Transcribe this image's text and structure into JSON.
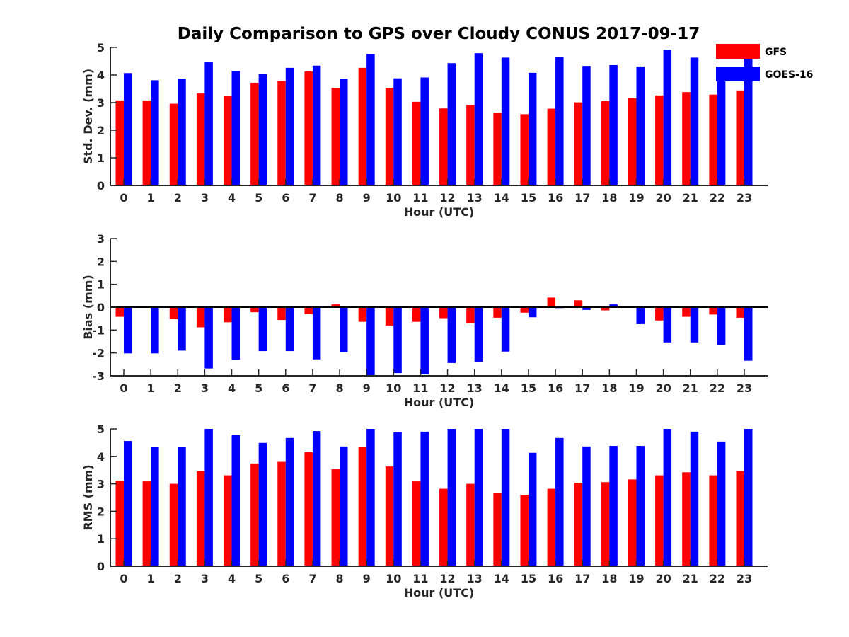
{
  "colors": {
    "gfs": "#ff0000",
    "goes": "#0000ff",
    "axis": "#262626"
  },
  "chart_data": {
    "type": "bar",
    "title": "Daily Comparison to GPS over Cloudy CONUS 2017-09-17",
    "legend": {
      "placement": "top-right",
      "entries": [
        "GFS",
        "GOES-16"
      ]
    },
    "categories": [
      "0",
      "1",
      "2",
      "3",
      "4",
      "5",
      "6",
      "7",
      "8",
      "9",
      "10",
      "11",
      "12",
      "13",
      "14",
      "15",
      "16",
      "17",
      "18",
      "19",
      "20",
      "21",
      "22",
      "23"
    ],
    "panels": [
      {
        "ylabel": "Std. Dev. (mm)",
        "xlabel": "Hour (UTC)",
        "ylim": [
          0,
          5
        ],
        "yticks": [
          0,
          1,
          2,
          3,
          4,
          5
        ],
        "grid": false,
        "series": [
          {
            "name": "GFS",
            "values": [
              3.08,
              3.08,
              2.96,
              3.33,
              3.23,
              3.72,
              3.78,
              4.13,
              3.53,
              4.26,
              3.53,
              3.03,
              2.79,
              2.91,
              2.63,
              2.58,
              2.78,
              3.01,
              3.06,
              3.16,
              3.26,
              3.38,
              3.29,
              3.44
            ]
          },
          {
            "name": "GOES-16",
            "values": [
              4.07,
              3.81,
              3.86,
              4.46,
              4.15,
              4.03,
              4.26,
              4.34,
              3.86,
              4.76,
              3.88,
              3.91,
              4.43,
              4.79,
              4.63,
              4.08,
              4.66,
              4.33,
              4.36,
              4.31,
              4.92,
              4.63,
              4.21,
              4.88
            ]
          }
        ]
      },
      {
        "ylabel": "Bias (mm)",
        "xlabel": "Hour (UTC)",
        "ylim": [
          -3,
          3
        ],
        "yticks": [
          -3,
          -2,
          -1,
          0,
          1,
          2,
          3
        ],
        "grid": false,
        "series": [
          {
            "name": "GFS",
            "values": [
              -0.42,
              -0.02,
              -0.52,
              -0.88,
              -0.66,
              -0.22,
              -0.56,
              -0.3,
              0.12,
              -0.64,
              -0.8,
              -0.64,
              -0.48,
              -0.7,
              -0.46,
              -0.24,
              0.42,
              0.3,
              -0.14,
              -0.02,
              -0.58,
              -0.42,
              -0.32,
              -0.46
            ]
          },
          {
            "name": "GOES-16",
            "values": [
              -2.02,
              -2.02,
              -1.9,
              -2.68,
              -2.3,
              -1.92,
              -1.92,
              -2.28,
              -1.98,
              -3.0,
              -2.88,
              -2.94,
              -2.44,
              -2.38,
              -1.94,
              -0.44,
              -0.04,
              -0.12,
              0.12,
              -0.74,
              -1.54,
              -1.54,
              -1.66,
              -2.34
            ]
          }
        ]
      },
      {
        "ylabel": "RMS (mm)",
        "xlabel": "Hour (UTC)",
        "ylim": [
          0,
          5
        ],
        "yticks": [
          0,
          1,
          2,
          3,
          4,
          5
        ],
        "grid": false,
        "series": [
          {
            "name": "GFS",
            "values": [
              3.11,
              3.09,
              3.0,
              3.46,
              3.31,
              3.74,
              3.8,
              4.15,
              3.53,
              4.33,
              3.63,
              3.09,
              2.82,
              3.0,
              2.68,
              2.6,
              2.82,
              3.04,
              3.06,
              3.16,
              3.31,
              3.42,
              3.31,
              3.46
            ]
          },
          {
            "name": "GOES-16",
            "values": [
              4.56,
              4.33,
              4.33,
              5.0,
              4.77,
              4.49,
              4.67,
              4.92,
              4.36,
              5.0,
              4.87,
              4.9,
              5.0,
              5.0,
              5.0,
              4.13,
              4.67,
              4.36,
              4.38,
              4.38,
              5.0,
              4.9,
              4.54,
              5.0
            ]
          }
        ]
      }
    ]
  }
}
